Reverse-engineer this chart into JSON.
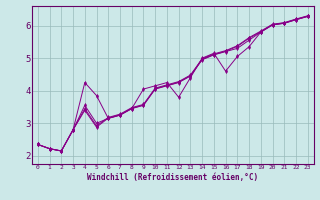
{
  "xlabel": "Windchill (Refroidissement éolien,°C)",
  "ylabel": "",
  "bg_color": "#cce8e8",
  "line_color": "#880088",
  "grid_color": "#99bbbb",
  "text_color": "#660066",
  "xlim": [
    -0.5,
    23.5
  ],
  "ylim": [
    1.75,
    6.6
  ],
  "xticks": [
    0,
    1,
    2,
    3,
    4,
    5,
    6,
    7,
    8,
    9,
    10,
    11,
    12,
    13,
    14,
    15,
    16,
    17,
    18,
    19,
    20,
    21,
    22,
    23
  ],
  "yticks": [
    2,
    3,
    4,
    5,
    6
  ],
  "lines": [
    [
      2.35,
      2.22,
      2.15,
      2.8,
      4.25,
      3.85,
      3.15,
      3.25,
      3.45,
      4.05,
      4.15,
      4.25,
      3.8,
      4.4,
      5.0,
      5.15,
      4.6,
      5.05,
      5.35,
      5.8,
      6.02,
      6.07,
      6.18,
      6.28
    ],
    [
      2.35,
      2.22,
      2.15,
      2.8,
      3.55,
      3.0,
      3.15,
      3.25,
      3.45,
      3.55,
      4.05,
      4.15,
      4.25,
      4.45,
      4.95,
      5.1,
      5.2,
      5.3,
      5.55,
      5.8,
      6.02,
      6.07,
      6.18,
      6.28
    ],
    [
      2.35,
      2.22,
      2.15,
      2.8,
      3.45,
      2.92,
      3.18,
      3.28,
      3.48,
      3.58,
      4.08,
      4.18,
      4.28,
      4.48,
      4.98,
      5.13,
      5.23,
      5.38,
      5.63,
      5.83,
      6.04,
      6.09,
      6.2,
      6.3
    ],
    [
      2.35,
      2.22,
      2.15,
      2.8,
      3.4,
      2.88,
      3.16,
      3.26,
      3.46,
      3.56,
      4.06,
      4.16,
      4.26,
      4.46,
      4.96,
      5.11,
      5.21,
      5.36,
      5.61,
      5.81,
      6.03,
      6.08,
      6.19,
      6.29
    ]
  ]
}
